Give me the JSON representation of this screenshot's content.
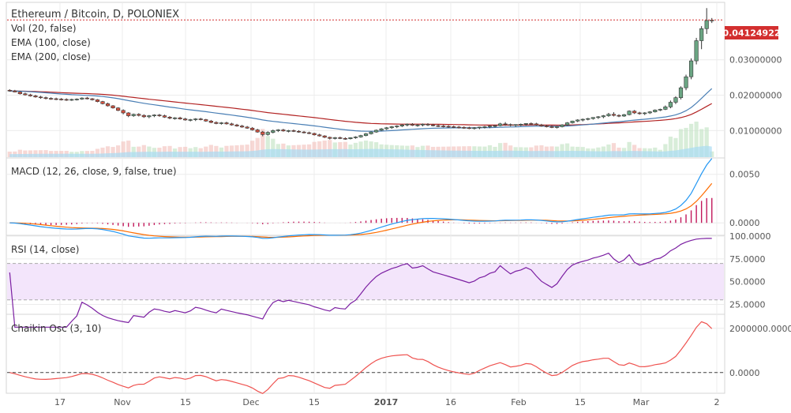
{
  "chart_data": {
    "type": "candlestick",
    "title": "Ethereum / Bitcoin, D, POLONIEX",
    "legend": [
      "Vol (20, false)",
      "EMA (100, close)",
      "EMA (200, close)"
    ],
    "last_price_label": "0.04124922",
    "x_tick_labels": [
      "17",
      "Nov",
      "15",
      "Dec",
      "15",
      "2017",
      "16",
      "Feb",
      "15",
      "Mar",
      "2"
    ],
    "colors": {
      "up": "#6ba583",
      "down": "#d75442",
      "ema100": "#4a7fb5",
      "ema200": "#b22222",
      "volume": "#a9dcf2",
      "macd": "#2196f3",
      "signal": "#ff6d00",
      "hist": "#c2185b",
      "rsi": "#7b1fa2",
      "rsi_band": "#f3e5fb",
      "chaikin": "#ef5350",
      "price_line": "#d32f2f"
    },
    "price": {
      "y_ticks": [
        "0.01000000",
        "0.02000000",
        "0.03000000"
      ],
      "ylim": [
        0.0025,
        0.046
      ],
      "ohlc": [
        [
          0.0214,
          0.0217,
          0.021,
          0.0212
        ],
        [
          0.0212,
          0.0215,
          0.0208,
          0.0209
        ],
        [
          0.0209,
          0.0211,
          0.0202,
          0.0204
        ],
        [
          0.0204,
          0.0207,
          0.0199,
          0.0201
        ],
        [
          0.0201,
          0.0204,
          0.0196,
          0.0198
        ],
        [
          0.0198,
          0.0201,
          0.0193,
          0.0195
        ],
        [
          0.0195,
          0.0198,
          0.019,
          0.0193
        ],
        [
          0.0193,
          0.0196,
          0.0188,
          0.0191
        ],
        [
          0.0191,
          0.0194,
          0.0187,
          0.019
        ],
        [
          0.019,
          0.0193,
          0.0186,
          0.0189
        ],
        [
          0.0189,
          0.0192,
          0.0185,
          0.0188
        ],
        [
          0.0188,
          0.0191,
          0.0184,
          0.0187
        ],
        [
          0.0187,
          0.019,
          0.0184,
          0.0188
        ],
        [
          0.0188,
          0.0191,
          0.0185,
          0.0189
        ],
        [
          0.0189,
          0.0194,
          0.0187,
          0.0192
        ],
        [
          0.0192,
          0.0195,
          0.0188,
          0.019
        ],
        [
          0.019,
          0.0192,
          0.0185,
          0.0187
        ],
        [
          0.0187,
          0.0189,
          0.018,
          0.0182
        ],
        [
          0.0182,
          0.0184,
          0.0174,
          0.0176
        ],
        [
          0.0176,
          0.0179,
          0.0168,
          0.017
        ],
        [
          0.017,
          0.0172,
          0.0162,
          0.0164
        ],
        [
          0.0164,
          0.0166,
          0.0155,
          0.0157
        ],
        [
          0.0157,
          0.016,
          0.0146,
          0.015
        ],
        [
          0.015,
          0.0152,
          0.0138,
          0.0142
        ],
        [
          0.0142,
          0.0148,
          0.0139,
          0.0146
        ],
        [
          0.0146,
          0.0149,
          0.014,
          0.0143
        ],
        [
          0.0143,
          0.0146,
          0.0136,
          0.0139
        ],
        [
          0.0139,
          0.0144,
          0.0135,
          0.0142
        ],
        [
          0.0142,
          0.0146,
          0.0138,
          0.0144
        ],
        [
          0.0144,
          0.0147,
          0.0139,
          0.0142
        ],
        [
          0.0142,
          0.0145,
          0.0136,
          0.0138
        ],
        [
          0.0138,
          0.0141,
          0.0132,
          0.0135
        ],
        [
          0.0135,
          0.0138,
          0.0131,
          0.0136
        ],
        [
          0.0136,
          0.0139,
          0.0131,
          0.0133
        ],
        [
          0.0133,
          0.0136,
          0.0128,
          0.013
        ],
        [
          0.013,
          0.0133,
          0.0126,
          0.0131
        ],
        [
          0.0131,
          0.0135,
          0.0127,
          0.0133
        ],
        [
          0.0133,
          0.0136,
          0.0129,
          0.0131
        ],
        [
          0.0131,
          0.0133,
          0.0125,
          0.0127
        ],
        [
          0.0127,
          0.013,
          0.0121,
          0.0123
        ],
        [
          0.0123,
          0.0126,
          0.0118,
          0.012
        ],
        [
          0.012,
          0.0124,
          0.0117,
          0.0122
        ],
        [
          0.0122,
          0.0125,
          0.0117,
          0.0119
        ],
        [
          0.0119,
          0.0122,
          0.0114,
          0.0116
        ],
        [
          0.0116,
          0.0119,
          0.0111,
          0.0113
        ],
        [
          0.0113,
          0.0116,
          0.0108,
          0.011
        ],
        [
          0.011,
          0.0113,
          0.0105,
          0.0107
        ],
        [
          0.0107,
          0.011,
          0.01,
          0.0102
        ],
        [
          0.0102,
          0.0105,
          0.0094,
          0.0096
        ],
        [
          0.0096,
          0.0099,
          0.0084,
          0.0089
        ],
        [
          0.0089,
          0.0098,
          0.0086,
          0.0095
        ],
        [
          0.0095,
          0.0103,
          0.0092,
          0.01
        ],
        [
          0.01,
          0.0104,
          0.0096,
          0.0102
        ],
        [
          0.0102,
          0.0105,
          0.0097,
          0.0099
        ],
        [
          0.0099,
          0.0102,
          0.0095,
          0.01
        ],
        [
          0.01,
          0.0103,
          0.0096,
          0.0098
        ],
        [
          0.0098,
          0.0101,
          0.0094,
          0.0096
        ],
        [
          0.0096,
          0.0099,
          0.0092,
          0.0094
        ],
        [
          0.0094,
          0.0097,
          0.009,
          0.0092
        ],
        [
          0.0092,
          0.0094,
          0.0086,
          0.0088
        ],
        [
          0.0088,
          0.0091,
          0.0083,
          0.0085
        ],
        [
          0.0085,
          0.0087,
          0.0079,
          0.0081
        ],
        [
          0.0081,
          0.0083,
          0.0075,
          0.0078
        ],
        [
          0.0078,
          0.0082,
          0.0075,
          0.008
        ],
        [
          0.008,
          0.0083,
          0.0076,
          0.0078
        ],
        [
          0.0078,
          0.0081,
          0.0074,
          0.0077
        ],
        [
          0.0077,
          0.0081,
          0.0075,
          0.008
        ],
        [
          0.008,
          0.0084,
          0.0077,
          0.0082
        ],
        [
          0.0082,
          0.0088,
          0.008,
          0.0086
        ],
        [
          0.0086,
          0.0093,
          0.0084,
          0.0091
        ],
        [
          0.0091,
          0.0098,
          0.0089,
          0.0096
        ],
        [
          0.0096,
          0.0103,
          0.0094,
          0.0101
        ],
        [
          0.0101,
          0.0107,
          0.0099,
          0.0105
        ],
        [
          0.0105,
          0.011,
          0.0102,
          0.0108
        ],
        [
          0.0108,
          0.0113,
          0.0105,
          0.0111
        ],
        [
          0.0111,
          0.0115,
          0.0107,
          0.0113
        ],
        [
          0.0113,
          0.0118,
          0.011,
          0.0116
        ],
        [
          0.0116,
          0.012,
          0.0112,
          0.0118
        ],
        [
          0.0118,
          0.0121,
          0.0113,
          0.0115
        ],
        [
          0.0115,
          0.0118,
          0.0111,
          0.0116
        ],
        [
          0.0116,
          0.012,
          0.0112,
          0.0118
        ],
        [
          0.0118,
          0.0121,
          0.0113,
          0.0116
        ],
        [
          0.0116,
          0.0119,
          0.0112,
          0.0114
        ],
        [
          0.0114,
          0.0117,
          0.011,
          0.0113
        ],
        [
          0.0113,
          0.0116,
          0.0109,
          0.0112
        ],
        [
          0.0112,
          0.0115,
          0.0108,
          0.0111
        ],
        [
          0.0111,
          0.0114,
          0.0107,
          0.011
        ],
        [
          0.011,
          0.0113,
          0.0106,
          0.0109
        ],
        [
          0.0109,
          0.0112,
          0.0105,
          0.0108
        ],
        [
          0.0108,
          0.0111,
          0.0104,
          0.0107
        ],
        [
          0.0107,
          0.011,
          0.0103,
          0.0108
        ],
        [
          0.0108,
          0.0111,
          0.0104,
          0.011
        ],
        [
          0.011,
          0.0113,
          0.0106,
          0.0111
        ],
        [
          0.0111,
          0.0115,
          0.0107,
          0.0113
        ],
        [
          0.0113,
          0.0116,
          0.0109,
          0.0114
        ],
        [
          0.0114,
          0.0122,
          0.0112,
          0.0119
        ],
        [
          0.0119,
          0.0124,
          0.0114,
          0.0117
        ],
        [
          0.0117,
          0.012,
          0.0112,
          0.0115
        ],
        [
          0.0115,
          0.0118,
          0.0111,
          0.0117
        ],
        [
          0.0117,
          0.012,
          0.0113,
          0.0118
        ],
        [
          0.0118,
          0.0121,
          0.0114,
          0.012
        ],
        [
          0.012,
          0.0123,
          0.0116,
          0.0119
        ],
        [
          0.0119,
          0.0122,
          0.0114,
          0.0116
        ],
        [
          0.0116,
          0.0119,
          0.0111,
          0.0113
        ],
        [
          0.0113,
          0.0116,
          0.0109,
          0.0111
        ],
        [
          0.0111,
          0.0114,
          0.0107,
          0.0109
        ],
        [
          0.0109,
          0.0113,
          0.0106,
          0.0111
        ],
        [
          0.0111,
          0.0118,
          0.0109,
          0.0116
        ],
        [
          0.0116,
          0.0124,
          0.0114,
          0.0122
        ],
        [
          0.0122,
          0.0128,
          0.012,
          0.0127
        ],
        [
          0.0127,
          0.0132,
          0.0124,
          0.013
        ],
        [
          0.013,
          0.0134,
          0.0126,
          0.0132
        ],
        [
          0.0132,
          0.0136,
          0.0129,
          0.0134
        ],
        [
          0.0134,
          0.0138,
          0.0131,
          0.0137
        ],
        [
          0.0137,
          0.0141,
          0.0133,
          0.0139
        ],
        [
          0.0139,
          0.0144,
          0.0135,
          0.0142
        ],
        [
          0.0142,
          0.015,
          0.0139,
          0.0146
        ],
        [
          0.0146,
          0.0152,
          0.014,
          0.0143
        ],
        [
          0.0143,
          0.0146,
          0.0138,
          0.0141
        ],
        [
          0.0141,
          0.0147,
          0.0139,
          0.0145
        ],
        [
          0.0145,
          0.0157,
          0.0143,
          0.0155
        ],
        [
          0.0155,
          0.0158,
          0.0147,
          0.015
        ],
        [
          0.015,
          0.0153,
          0.0145,
          0.0148
        ],
        [
          0.0148,
          0.0152,
          0.0144,
          0.015
        ],
        [
          0.015,
          0.0155,
          0.0147,
          0.0153
        ],
        [
          0.0153,
          0.016,
          0.0151,
          0.0158
        ],
        [
          0.0158,
          0.0162,
          0.0155,
          0.016
        ],
        [
          0.016,
          0.0171,
          0.0158,
          0.0167
        ],
        [
          0.0167,
          0.0185,
          0.0163,
          0.018
        ],
        [
          0.018,
          0.0197,
          0.0175,
          0.0193
        ],
        [
          0.0193,
          0.0225,
          0.0188,
          0.0221
        ],
        [
          0.0221,
          0.0258,
          0.0214,
          0.0252
        ],
        [
          0.0252,
          0.0304,
          0.0245,
          0.0297
        ],
        [
          0.0297,
          0.0362,
          0.0287,
          0.0354
        ],
        [
          0.0354,
          0.0395,
          0.033,
          0.0388
        ],
        [
          0.0388,
          0.0446,
          0.0373,
          0.0411
        ],
        [
          0.0411,
          0.0418,
          0.0404,
          0.0412
        ]
      ]
    },
    "macd": {
      "y_ticks": [
        "0.0000",
        "0.0050"
      ],
      "ylim": [
        -0.0012,
        0.0066
      ]
    },
    "rsi": {
      "title": "RSI (14, close)",
      "y_ticks": [
        "25.0000",
        "50.0000",
        "75.0000",
        "100.0000"
      ],
      "ylim": [
        15,
        100
      ],
      "band": [
        30,
        70
      ]
    },
    "chaikin": {
      "title": "Chaikin Osc (3, 10)",
      "y_ticks": [
        "0.0000",
        "2000000.0000"
      ],
      "ylim": [
        -900000,
        2600000
      ]
    }
  },
  "labels": {
    "macd_title": "MACD (12, 26, close, 9, false, true)"
  }
}
